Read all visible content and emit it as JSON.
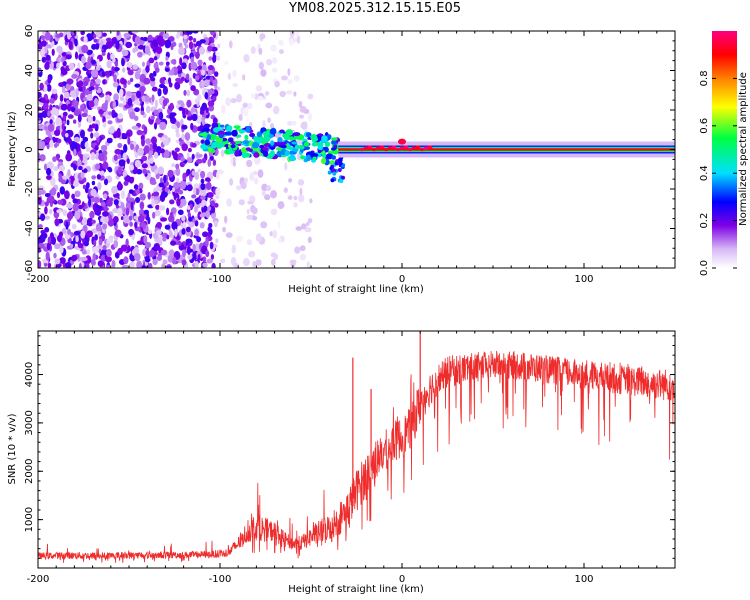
{
  "title": "YM08.2025.312.15.15.E05",
  "chart_data": [
    {
      "type": "heatmap",
      "name": "spectrogram",
      "xlabel": "Height of straight line (km)",
      "ylabel": "Frequency (Hz)",
      "xlim": [
        -200,
        150
      ],
      "ylim": [
        -60,
        60
      ],
      "x_ticks": [
        -200,
        -100,
        0,
        100
      ],
      "y_ticks": [
        -60,
        -40,
        -20,
        0,
        20,
        40,
        60
      ],
      "colorbar": {
        "label": "Normalized spectral amplitude",
        "range": [
          0.0,
          1.0
        ],
        "ticks": [
          0.0,
          0.2,
          0.4,
          0.6,
          0.8
        ],
        "tick_labels": [
          "0.0",
          "0.2",
          "0.4",
          "0.6",
          "0.8"
        ],
        "colormap": [
          "#ffffff",
          "#d7b8f5",
          "#7d00e6",
          "#0000ff",
          "#00e0ff",
          "#00ff40",
          "#ffff00",
          "#ff8000",
          "#ff0000",
          "#ff0080"
        ]
      },
      "features": [
        {
          "label": "noise region",
          "x_range": [
            -200,
            -102
          ],
          "freq_range": [
            -60,
            60
          ],
          "amplitude": 0.15
        },
        {
          "label": "sparse noise",
          "x_range": [
            -102,
            -50
          ],
          "freq_range": [
            -60,
            60
          ],
          "amplitude": 0.05
        },
        {
          "label": "signal onset",
          "x_range": [
            -110,
            -35
          ],
          "center_freq": 6,
          "amplitude": 0.35
        },
        {
          "label": "carrier line",
          "x_range": [
            -35,
            150
          ],
          "center_freq": 0,
          "amplitude": 0.9
        },
        {
          "label": "peak at zero",
          "x": 0,
          "freq": 4,
          "amplitude": 0.95
        }
      ]
    },
    {
      "type": "line",
      "name": "snr",
      "xlabel": "Height of straight line (km)",
      "ylabel": "SNR (10 * v/v)",
      "xlim": [
        -200,
        150
      ],
      "ylim": [
        0,
        4900
      ],
      "x_ticks": [
        -200,
        -100,
        0,
        100
      ],
      "y_ticks": [
        1000,
        2000,
        3000,
        4000
      ],
      "color": "#ee2c2c",
      "x": [
        -200,
        -180,
        -160,
        -140,
        -120,
        -105,
        -100,
        -95,
        -90,
        -85,
        -80,
        -75,
        -70,
        -65,
        -60,
        -55,
        -50,
        -45,
        -40,
        -35,
        -30,
        -25,
        -20,
        -15,
        -10,
        -5,
        0,
        5,
        10,
        15,
        20,
        25,
        30,
        40,
        50,
        60,
        70,
        80,
        90,
        100,
        110,
        120,
        130,
        140,
        150
      ],
      "values": [
        250,
        260,
        255,
        265,
        270,
        280,
        300,
        330,
        500,
        750,
        850,
        800,
        750,
        600,
        500,
        520,
        650,
        750,
        850,
        1000,
        1200,
        1600,
        1900,
        2200,
        2400,
        2600,
        2700,
        2900,
        3400,
        3700,
        3900,
        4050,
        4100,
        4150,
        4200,
        4200,
        4150,
        4100,
        4050,
        4000,
        3950,
        3900,
        3850,
        3800,
        3780
      ],
      "envelope_max": [
        500,
        520,
        510,
        520,
        540,
        560,
        620,
        700,
        1100,
        1600,
        1900,
        1700,
        1500,
        1200,
        1000,
        1100,
        1400,
        1700,
        1900,
        2300,
        2700,
        3000,
        3300,
        3500,
        3600,
        3800,
        4000,
        4100,
        4600,
        4400,
        4350,
        4400,
        4450,
        4450,
        4450,
        4480,
        4450,
        4400,
        4350,
        4300,
        4280,
        4250,
        4200,
        4150,
        4100
      ],
      "envelope_min": [
        100,
        100,
        100,
        110,
        120,
        130,
        140,
        160,
        200,
        250,
        300,
        300,
        280,
        250,
        200,
        200,
        220,
        250,
        300,
        350,
        400,
        500,
        700,
        900,
        1200,
        1400,
        1500,
        1600,
        2000,
        2300,
        2400,
        2500,
        2600,
        2700,
        2750,
        2800,
        2700,
        2700,
        2650,
        2600,
        2500,
        2450,
        2400,
        2300,
        2100
      ],
      "spikes": [
        {
          "x": -27,
          "value": 4350
        },
        {
          "x": 10,
          "value": 4900
        },
        {
          "x": -17,
          "value": 3700
        }
      ]
    }
  ]
}
